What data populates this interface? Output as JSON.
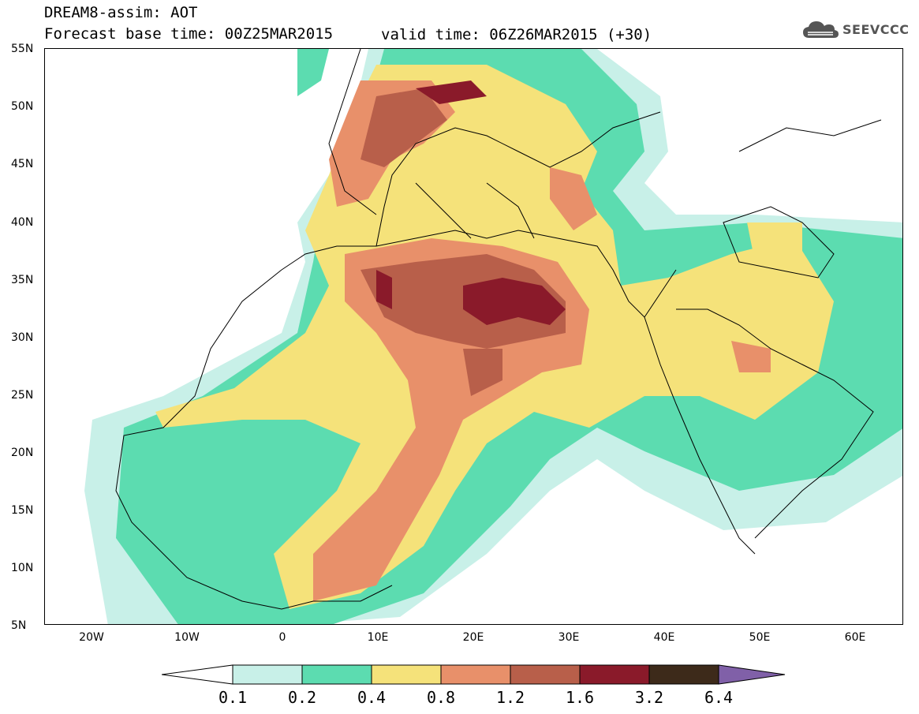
{
  "header": {
    "title": "DREAM8-assim: AOT",
    "base_time": "Forecast base time: 00Z25MAR2015",
    "valid_time": "valid time: 06Z26MAR2015 (+30)"
  },
  "logo": {
    "text": "SEEVCCC",
    "icon": "cloud-icon"
  },
  "map": {
    "projection": "lat-lon",
    "lon_range": [
      -25,
      65
    ],
    "lat_range": [
      5,
      55
    ],
    "lat_ticks": [
      "55N",
      "50N",
      "45N",
      "40N",
      "35N",
      "30N",
      "25N",
      "20N",
      "15N",
      "10N",
      "5N"
    ],
    "lon_ticks": [
      "20W",
      "10W",
      "0",
      "10E",
      "20E",
      "30E",
      "40E",
      "50E",
      "60E"
    ]
  },
  "legend": {
    "levels": [
      "0.1",
      "0.2",
      "0.4",
      "0.8",
      "1.2",
      "1.6",
      "3.2",
      "6.4"
    ],
    "colors": {
      "below": "#ffffff",
      "0.1-0.2": "#c8f0e8",
      "0.2-0.4": "#5cdcb0",
      "0.4-0.8": "#f5e27a",
      "0.8-1.2": "#e8906a",
      "1.2-1.6": "#b85f4a",
      "1.6-3.2": "#8a1a2a",
      "3.2-6.4": "#3d2a1a",
      "above": "#8060a8"
    }
  }
}
